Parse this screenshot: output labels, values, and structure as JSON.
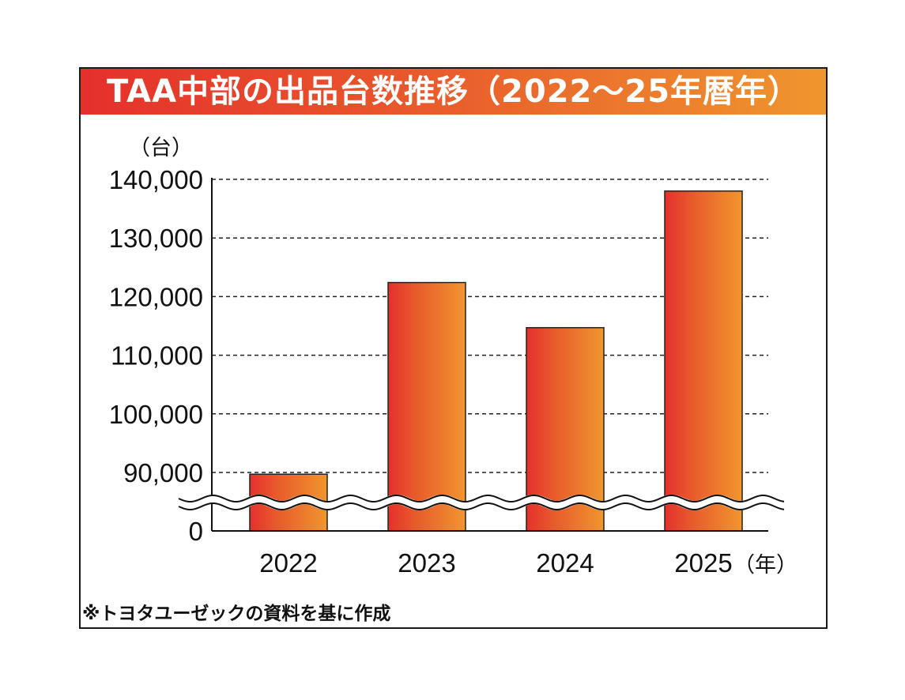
{
  "chart_data": {
    "type": "bar",
    "title": "TAA中部の出品台数推移（2022～25年暦年）",
    "ylabel": "（台）",
    "xlabel": "（年）",
    "categories": [
      "2022",
      "2023",
      "2024",
      "2025"
    ],
    "values": [
      89700,
      122400,
      114700,
      138000
    ],
    "ylim": [
      0,
      140000
    ],
    "axis_break": {
      "from": 0,
      "to": 85000
    },
    "yticks": [
      0,
      90000,
      100000,
      110000,
      120000,
      130000,
      140000
    ],
    "ytick_labels": [
      "0",
      "90,000",
      "100,000",
      "110,000",
      "120,000",
      "130,000",
      "140,000"
    ],
    "grid": true,
    "grid_style": "dashed",
    "bar_gradient": [
      "#e5302c",
      "#f0962e"
    ],
    "source_note": "※トヨタユーゼックの資料を基に作成"
  }
}
